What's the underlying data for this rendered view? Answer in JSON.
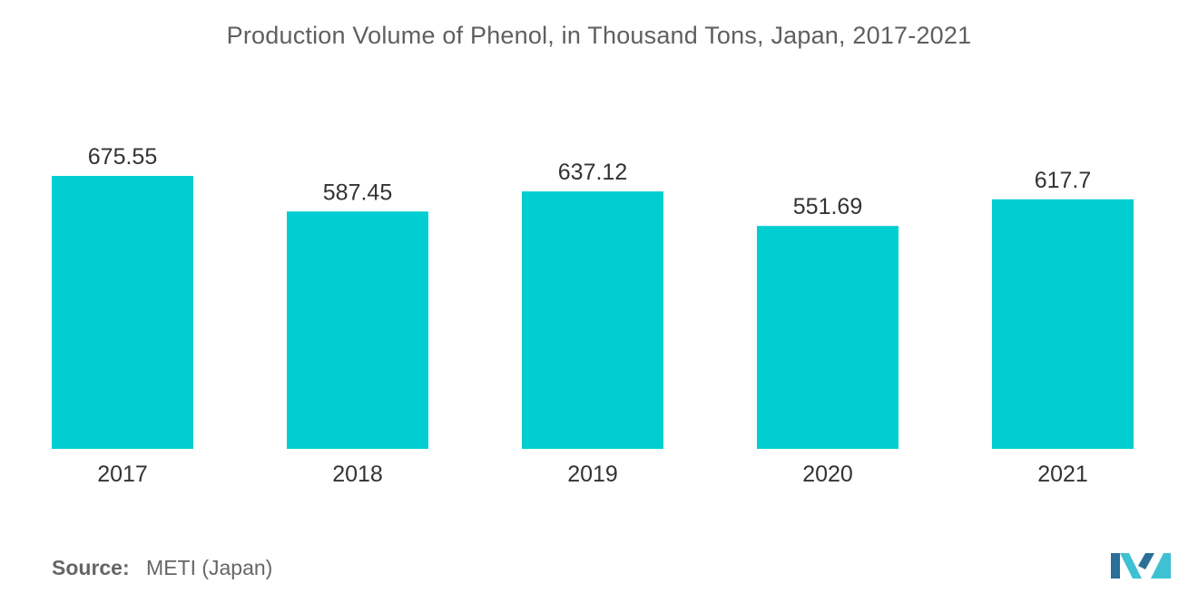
{
  "chart_data": {
    "type": "bar",
    "title": "Production Volume of Phenol, in Thousand Tons, Japan, 2017-2021",
    "xlabel": "",
    "ylabel": "",
    "categories": [
      "2017",
      "2018",
      "2019",
      "2020",
      "2021"
    ],
    "values": [
      675.55,
      587.45,
      637.12,
      551.69,
      617.7
    ],
    "value_labels": [
      "675.55",
      "587.45",
      "637.12",
      "551.69",
      "617.7"
    ],
    "ylim": [
      0,
      675.55
    ],
    "grid": false,
    "legend": "none",
    "bar_color": "#00ced1"
  },
  "source": {
    "label": "Source:",
    "text": "METI (Japan)"
  },
  "logo": {
    "icon": "mordor-intelligence-logo-icon",
    "color_dark": "#2a6f97",
    "color_light": "#3ec1d3"
  }
}
